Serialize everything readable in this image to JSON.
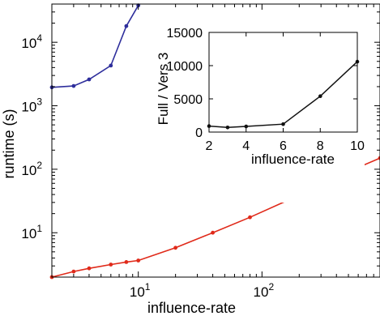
{
  "chart_data": [
    {
      "type": "line",
      "xlabel": "influence-rate",
      "ylabel": "runtime (s)",
      "xscale": "log",
      "yscale": "log",
      "xlim": [
        2,
        900
      ],
      "ylim": [
        2,
        40000
      ],
      "xticks": [
        {
          "value": 10,
          "label": "10",
          "exp": "1"
        },
        {
          "value": 100,
          "label": "10",
          "exp": "2"
        }
      ],
      "yticks": [
        {
          "value": 10,
          "label": "10",
          "exp": "1"
        },
        {
          "value": 100,
          "label": "10",
          "exp": "2"
        },
        {
          "value": 1000,
          "label": "10",
          "exp": "3"
        },
        {
          "value": 10000,
          "label": "10",
          "exp": "4"
        }
      ],
      "series": [
        {
          "color": "#2e2e9c",
          "x": [
            2,
            3,
            4,
            6,
            8,
            10
          ],
          "y": [
            1950,
            2050,
            2600,
            4300,
            18000,
            38000
          ]
        },
        {
          "color": "#e02a1a",
          "x": [
            2,
            3,
            4,
            6,
            8,
            10,
            20,
            40,
            80,
            200,
            400,
            900
          ],
          "y": [
            2.0,
            2.45,
            2.75,
            3.15,
            3.45,
            3.65,
            5.8,
            10.0,
            17.5,
            39,
            76,
            150
          ]
        }
      ]
    },
    {
      "type": "line",
      "xlabel": "influence-rate",
      "ylabel": "Full / Vers 3",
      "xlim": [
        2,
        10
      ],
      "ylim": [
        0,
        15000
      ],
      "xticks": [
        2,
        4,
        6,
        8,
        10
      ],
      "yticks": [
        0,
        5000,
        10000,
        15000
      ],
      "series": [
        {
          "color": "#111111",
          "x": [
            2,
            3,
            4,
            6,
            8,
            10
          ],
          "y": [
            900,
            700,
            850,
            1200,
            5400,
            10600
          ]
        }
      ]
    }
  ]
}
